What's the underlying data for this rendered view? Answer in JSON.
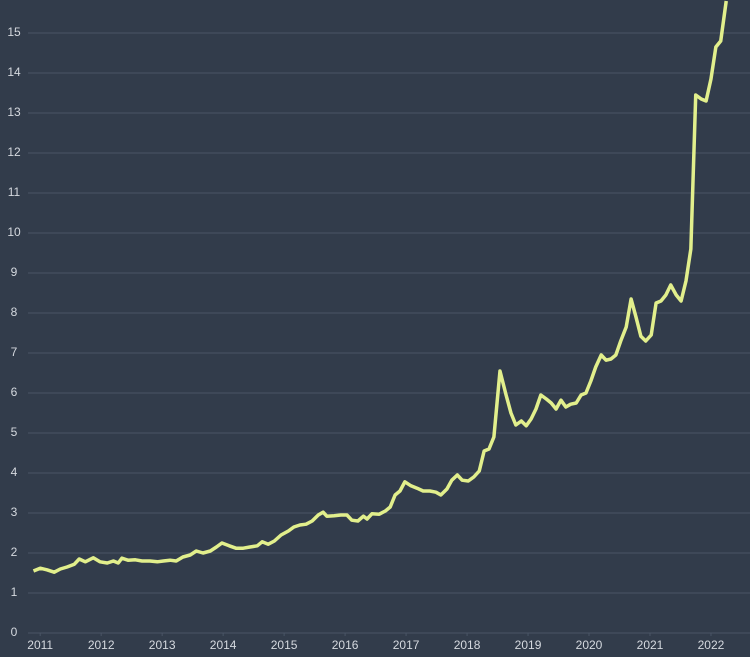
{
  "chart_data": {
    "type": "line",
    "x": [
      2010.89,
      2011.0,
      2011.11,
      2011.23,
      2011.33,
      2011.44,
      2011.56,
      2011.64,
      2011.74,
      2011.87,
      2011.98,
      2012.1,
      2012.2,
      2012.28,
      2012.34,
      2012.44,
      2012.56,
      2012.67,
      2012.8,
      2012.92,
      2013.02,
      2013.13,
      2013.23,
      2013.34,
      2013.46,
      2013.56,
      2013.67,
      2013.79,
      2013.89,
      2013.98,
      2014.1,
      2014.21,
      2014.33,
      2014.44,
      2014.56,
      2014.64,
      2014.74,
      2014.84,
      2014.95,
      2015.07,
      2015.16,
      2015.26,
      2015.36,
      2015.46,
      2015.56,
      2015.64,
      2015.7,
      2015.82,
      2015.93,
      2016.03,
      2016.11,
      2016.21,
      2016.3,
      2016.36,
      2016.44,
      2016.56,
      2016.66,
      2016.74,
      2016.82,
      2016.9,
      2016.98,
      2017.08,
      2017.18,
      2017.28,
      2017.39,
      2017.49,
      2017.57,
      2017.67,
      2017.75,
      2017.84,
      2017.92,
      2018.02,
      2018.11,
      2018.2,
      2018.28,
      2018.36,
      2018.44,
      2018.54,
      2018.64,
      2018.72,
      2018.8,
      2018.89,
      2018.97,
      2019.05,
      2019.13,
      2019.21,
      2019.3,
      2019.38,
      2019.46,
      2019.54,
      2019.62,
      2019.7,
      2019.79,
      2019.87,
      2019.95,
      2020.03,
      2020.11,
      2020.2,
      2020.28,
      2020.36,
      2020.44,
      2020.52,
      2020.61,
      2020.69,
      2020.77,
      2020.85,
      2020.93,
      2021.02,
      2021.1,
      2021.18,
      2021.26,
      2021.34,
      2021.43,
      2021.51,
      2021.59,
      2021.67,
      2021.75,
      2021.84,
      2021.92,
      2022.0,
      2022.08,
      2022.16,
      2022.25
    ],
    "series": [
      {
        "color": "#e2ef8c",
        "values": [
          1.55,
          1.62,
          1.58,
          1.52,
          1.6,
          1.65,
          1.72,
          1.85,
          1.78,
          1.88,
          1.78,
          1.75,
          1.8,
          1.75,
          1.87,
          1.82,
          1.83,
          1.8,
          1.8,
          1.78,
          1.8,
          1.82,
          1.8,
          1.9,
          1.95,
          2.05,
          2.0,
          2.05,
          2.15,
          2.25,
          2.18,
          2.12,
          2.12,
          2.15,
          2.18,
          2.28,
          2.22,
          2.3,
          2.45,
          2.55,
          2.65,
          2.7,
          2.72,
          2.8,
          2.95,
          3.02,
          2.92,
          2.93,
          2.95,
          2.95,
          2.82,
          2.8,
          2.92,
          2.85,
          2.98,
          2.97,
          3.05,
          3.15,
          3.45,
          3.55,
          3.78,
          3.68,
          3.62,
          3.55,
          3.55,
          3.52,
          3.45,
          3.6,
          3.82,
          3.95,
          3.82,
          3.8,
          3.9,
          4.05,
          4.55,
          4.6,
          4.9,
          6.55,
          5.95,
          5.5,
          5.2,
          5.3,
          5.18,
          5.35,
          5.6,
          5.95,
          5.85,
          5.75,
          5.6,
          5.82,
          5.65,
          5.72,
          5.75,
          5.95,
          6.0,
          6.3,
          6.65,
          6.95,
          6.82,
          6.85,
          6.95,
          7.3,
          7.65,
          8.35,
          7.9,
          7.42,
          7.3,
          7.45,
          8.25,
          8.3,
          8.45,
          8.7,
          8.45,
          8.3,
          8.8,
          9.6,
          13.45,
          13.35,
          13.3,
          13.85,
          14.65,
          14.8,
          15.8
        ]
      }
    ],
    "xlim": [
      2010.8,
      2022.64
    ],
    "xticks": [
      2011,
      2012,
      2013,
      2014,
      2015,
      2016,
      2017,
      2018,
      2019,
      2020,
      2021,
      2022
    ],
    "ylim": [
      0,
      15.825
    ],
    "yticks": [
      0,
      1,
      2,
      3,
      4,
      5,
      6,
      7,
      8,
      9,
      10,
      11,
      12,
      13,
      14,
      15
    ],
    "grid": true
  }
}
